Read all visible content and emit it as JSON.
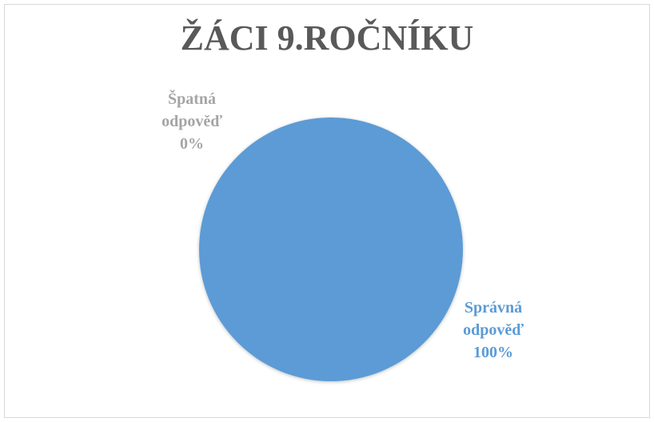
{
  "chart_data": {
    "type": "pie",
    "title": "ŽÁCI 9.ROČNÍKU",
    "slices": [
      {
        "category": "Správná odpověď",
        "category_line1": "Správná",
        "category_line2": "odpověď",
        "value": 100,
        "label": "100%",
        "color": "#5b9bd5"
      },
      {
        "category": "Špatná odpověď",
        "category_line1": "Špatná",
        "category_line2": "odpověď",
        "value": 0,
        "label": "0%",
        "color": "#a5a5a5"
      }
    ],
    "legend": "none"
  }
}
